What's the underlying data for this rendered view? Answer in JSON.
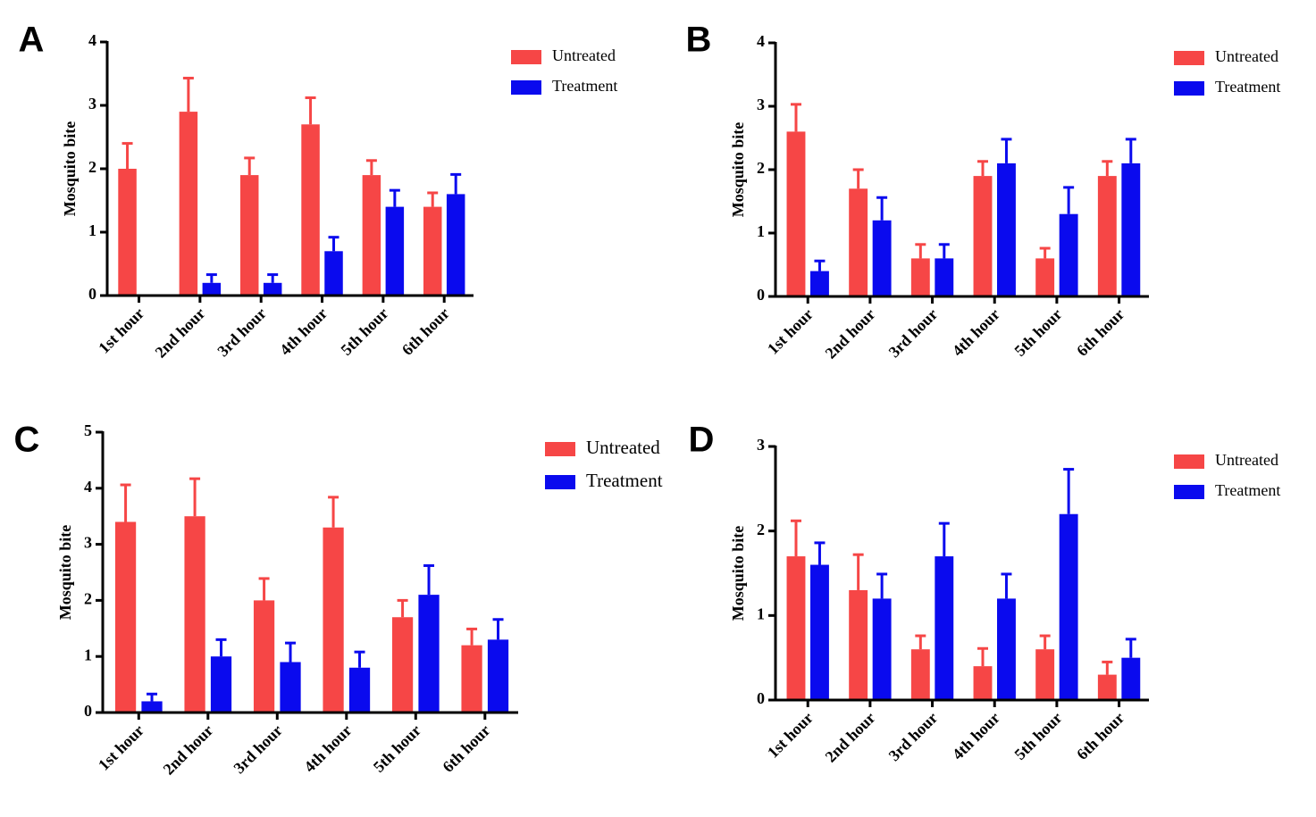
{
  "chart_data": [
    {
      "type": "bar",
      "label": "A",
      "ylabel": "Mosquito bite",
      "categories": [
        "1st hour",
        "2nd hour",
        "3rd hour",
        "4th hour",
        "5th hour",
        "6th hour"
      ],
      "series": [
        {
          "name": "Untreated",
          "color": "#f64646",
          "values": [
            2.0,
            2.9,
            1.9,
            2.7,
            1.9,
            1.4
          ],
          "errors": [
            0.4,
            0.53,
            0.27,
            0.42,
            0.23,
            0.22
          ]
        },
        {
          "name": "Treatment",
          "color": "#0a0aee",
          "values": [
            0,
            0.2,
            0.2,
            0.7,
            1.4,
            1.6
          ],
          "errors": [
            null,
            0.13,
            0.13,
            0.22,
            0.26,
            0.31
          ]
        }
      ],
      "ylim": [
        0,
        4
      ],
      "yticks": [
        0,
        1,
        2,
        3,
        4
      ],
      "legend": "top-right"
    },
    {
      "type": "bar",
      "label": "B",
      "ylabel": "Mosquito bite",
      "categories": [
        "1st hour",
        "2nd hour",
        "3rd hour",
        "4th hour",
        "5th hour",
        "6th hour"
      ],
      "series": [
        {
          "name": "Untreated",
          "color": "#f64646",
          "values": [
            2.6,
            1.7,
            0.6,
            1.9,
            0.6,
            1.9
          ],
          "errors": [
            0.43,
            0.3,
            0.22,
            0.23,
            0.16,
            0.23
          ]
        },
        {
          "name": "Treatment",
          "color": "#0a0aee",
          "values": [
            0.4,
            1.2,
            0.6,
            2.1,
            1.3,
            2.1
          ],
          "errors": [
            0.16,
            0.36,
            0.22,
            0.38,
            0.42,
            0.38
          ]
        }
      ],
      "ylim": [
        0,
        4
      ],
      "yticks": [
        0,
        1,
        2,
        3,
        4
      ],
      "legend": "top-right"
    },
    {
      "type": "bar",
      "label": "C",
      "ylabel": "Mosquito bite",
      "categories": [
        "1st hour",
        "2nd hour",
        "3rd hour",
        "4th hour",
        "5th hour",
        "6th hour"
      ],
      "series": [
        {
          "name": "Untreated",
          "color": "#f64646",
          "values": [
            3.4,
            3.5,
            2.0,
            3.3,
            1.7,
            1.2
          ],
          "errors": [
            0.66,
            0.67,
            0.39,
            0.54,
            0.3,
            0.29
          ]
        },
        {
          "name": "Treatment",
          "color": "#0a0aee",
          "values": [
            0.2,
            1.0,
            0.9,
            0.8,
            2.1,
            1.3
          ],
          "errors": [
            0.13,
            0.3,
            0.34,
            0.28,
            0.52,
            0.36
          ]
        }
      ],
      "ylim": [
        0,
        5
      ],
      "yticks": [
        0,
        1,
        2,
        3,
        4,
        5
      ],
      "legend": "top-right"
    },
    {
      "type": "bar",
      "label": "D",
      "ylabel": "Mosquito bite",
      "categories": [
        "1st hour",
        "2nd hour",
        "3rd hour",
        "4th hour",
        "5th hour",
        "6th hour"
      ],
      "series": [
        {
          "name": "Untreated",
          "color": "#f64646",
          "values": [
            1.7,
            1.3,
            0.6,
            0.4,
            0.6,
            0.3
          ],
          "errors": [
            0.42,
            0.42,
            0.16,
            0.21,
            0.16,
            0.15
          ]
        },
        {
          "name": "Treatment",
          "color": "#0a0aee",
          "values": [
            1.6,
            1.2,
            1.7,
            1.2,
            2.2,
            0.5
          ],
          "errors": [
            0.26,
            0.29,
            0.39,
            0.29,
            0.53,
            0.22
          ]
        }
      ],
      "ylim": [
        0,
        3
      ],
      "yticks": [
        0,
        1,
        2,
        3
      ],
      "legend": "top-right"
    }
  ]
}
